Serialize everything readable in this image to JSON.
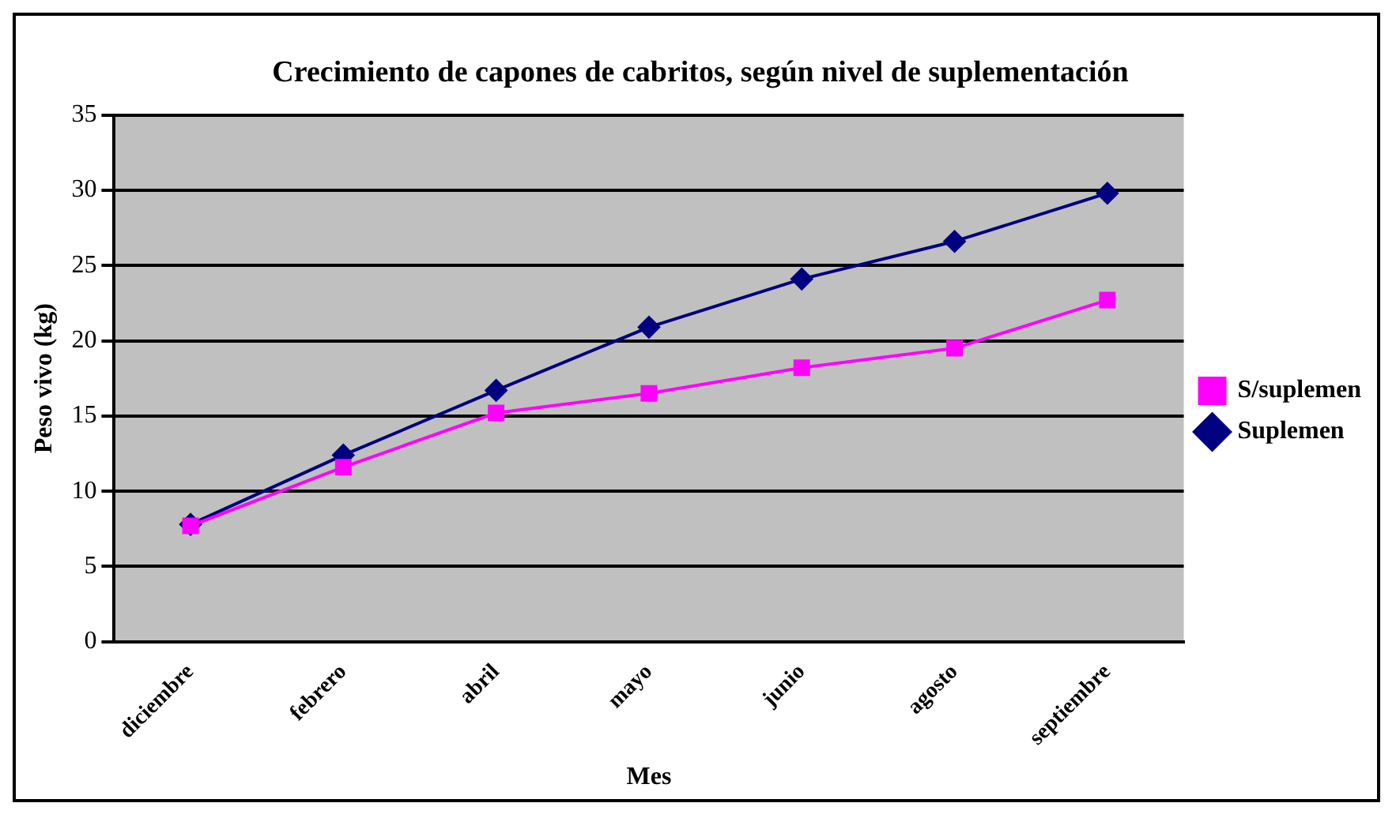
{
  "chart_data": {
    "type": "line",
    "title": "Crecimiento de capones de cabritos, según nivel de suplementación",
    "xlabel": "Mes",
    "ylabel": "Peso vivo (kg)",
    "categories": [
      "diciembre",
      "febrero",
      "abril",
      "mayo",
      "junio",
      "agosto",
      "septiembre"
    ],
    "series": [
      {
        "name": "Suplemen",
        "color": "#000080",
        "marker": "diamond",
        "values": [
          7.8,
          12.4,
          16.7,
          20.9,
          24.1,
          26.6,
          29.8
        ]
      },
      {
        "name": "S/suplemen",
        "color": "#ff00ff",
        "marker": "square",
        "values": [
          7.7,
          11.6,
          15.2,
          16.5,
          18.2,
          19.5,
          22.7
        ]
      }
    ],
    "ylim": [
      0,
      35
    ],
    "yticks": [
      0,
      5,
      10,
      15,
      20,
      25,
      30,
      35
    ],
    "grid": "y",
    "legend": "right"
  }
}
